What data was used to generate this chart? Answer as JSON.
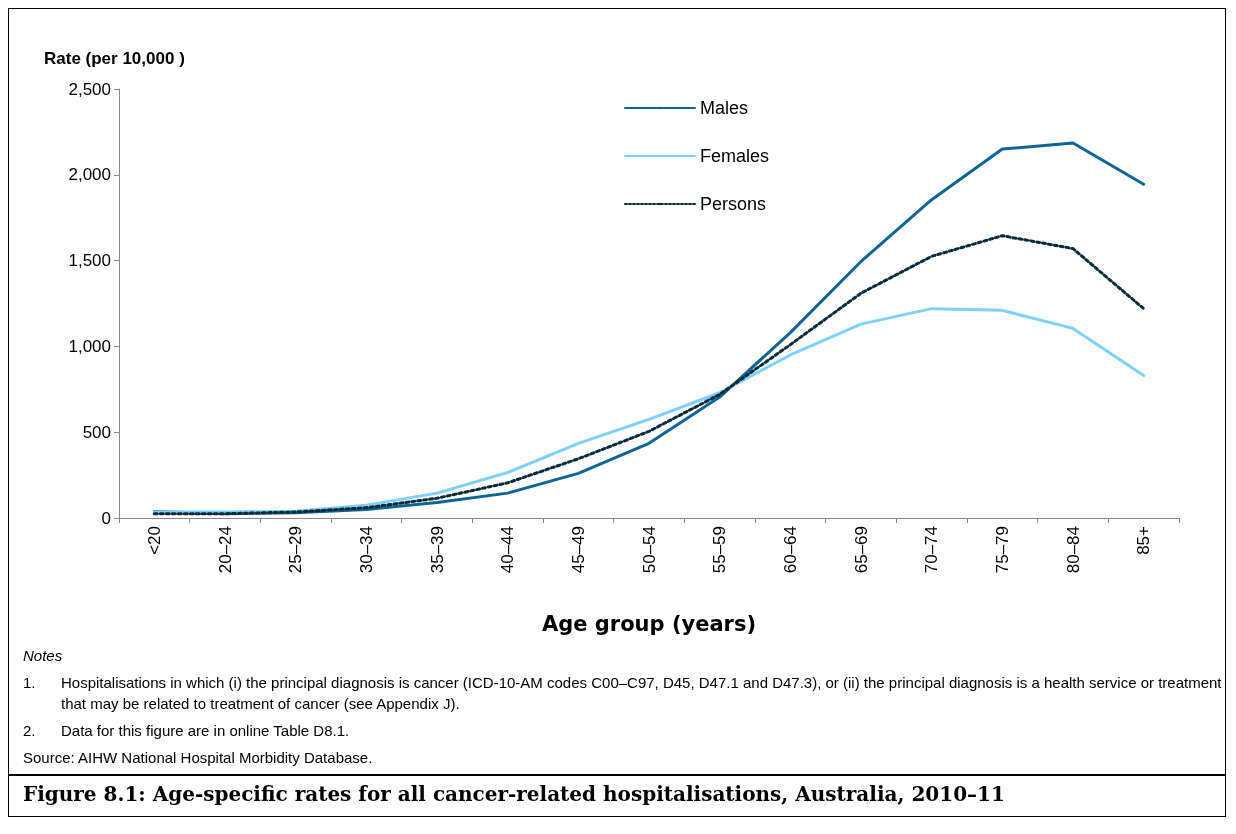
{
  "chart_data": {
    "type": "line",
    "ylabel": "Rate (per 10,000 )",
    "xlabel": "Age group (years)",
    "title": "Figure 8.1: Age-specific rates for all cancer-related hospitalisations, Australia, 2010–11",
    "categories": [
      "<20",
      "20–24",
      "25–29",
      "30–34",
      "35–39",
      "40–44",
      "45–49",
      "50–54",
      "55–59",
      "60–64",
      "65–69",
      "70–74",
      "75–79",
      "80–84",
      "85+"
    ],
    "series": [
      {
        "name": "Males",
        "color": "#0e6494",
        "line_style": "solid",
        "values": [
          38,
          25,
          30,
          50,
          90,
          145,
          260,
          435,
          705,
          1080,
          1495,
          1855,
          2150,
          2185,
          1945
        ]
      },
      {
        "name": "Females",
        "color": "#7fd0fb",
        "line_style": "solid",
        "values": [
          35,
          35,
          40,
          75,
          145,
          265,
          435,
          575,
          730,
          950,
          1130,
          1220,
          1210,
          1105,
          830
        ]
      },
      {
        "name": "Persons",
        "color": "#0a2b3c",
        "line_style": "dotted",
        "values": [
          25,
          25,
          35,
          60,
          115,
          205,
          345,
          505,
          720,
          1010,
          1310,
          1525,
          1645,
          1570,
          1220
        ]
      }
    ],
    "ylim": [
      0,
      2500
    ],
    "yticks": [
      0,
      500,
      {
        "value": 1000,
        "label": "1,000"
      },
      {
        "value": 1500,
        "label": "1,500"
      },
      {
        "value": 2000,
        "label": "2,000"
      },
      {
        "value": 2500,
        "label": "2,500"
      }
    ],
    "grid": false,
    "legend": "top",
    "marker": "none",
    "annotations": [
      "Notes",
      "1.\tHospitalisations in which (i) the principal diagnosis is cancer (ICD-10-AM codes C00–C97, D45, D47.1 and D47.3), or (ii) the principal diagnosis is a health service or treatment that may be related to treatment of cancer (see Appendix J).",
      "2.\tData for this figure are in online Table D8.1.",
      "Source: AIHW National Hospital Morbidity Database."
    ]
  }
}
